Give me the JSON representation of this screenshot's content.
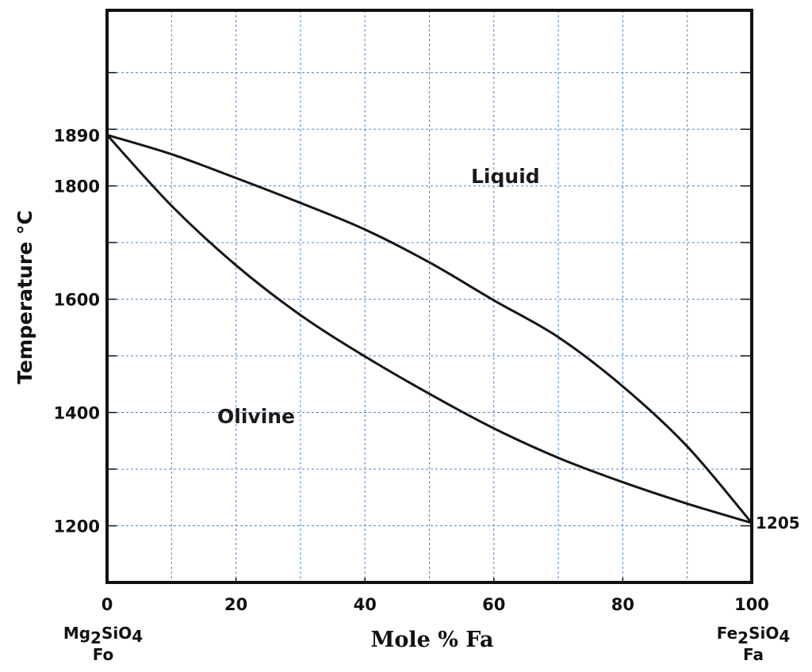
{
  "chart_data": {
    "type": "line",
    "title": "",
    "xlabel": "Mole % Fa",
    "ylabel": "Temperature °C",
    "xlim": [
      0,
      100
    ],
    "ylim": [
      1100,
      2110
    ],
    "grid": true,
    "grid_color": "#4a86c8",
    "x_ticks": [
      0,
      20,
      40,
      60,
      80,
      100
    ],
    "x_tick_labels": [
      "0",
      "20",
      "40",
      "60",
      "80",
      "100"
    ],
    "x_grid": [
      10,
      20,
      30,
      40,
      50,
      60,
      70,
      80,
      90
    ],
    "y_ticks": [
      1890,
      1800,
      1600,
      1400,
      1200
    ],
    "y_tick_labels": [
      "1890",
      "1800",
      "1600",
      "1400",
      "1200"
    ],
    "y_grid": [
      1200,
      1300,
      1400,
      1500,
      1600,
      1700,
      1800,
      1900,
      2000
    ],
    "right_label": "1205",
    "end_members": {
      "left": {
        "formula_main": "Mg",
        "sub1": "2",
        "formula_mid": "SiO",
        "sub2": "4",
        "abbr": "Fo"
      },
      "right": {
        "formula_main": "Fe",
        "sub1": "2",
        "formula_mid": "SiO",
        "sub2": "4",
        "abbr": "Fa"
      }
    },
    "regions": {
      "liquid": "Liquid",
      "olivine": "Olivine"
    },
    "series": [
      {
        "id": "liquidus",
        "x": [
          0,
          10,
          20,
          30,
          40,
          50,
          60,
          70,
          80,
          90,
          100
        ],
        "y": [
          1890,
          1856,
          1814,
          1770,
          1723,
          1665,
          1598,
          1533,
          1446,
          1340,
          1205
        ]
      },
      {
        "id": "solidus",
        "x": [
          0,
          10,
          20,
          30,
          40,
          50,
          60,
          70,
          80,
          90,
          100
        ],
        "y": [
          1890,
          1765,
          1660,
          1572,
          1499,
          1433,
          1372,
          1320,
          1277,
          1239,
          1205
        ]
      }
    ]
  }
}
